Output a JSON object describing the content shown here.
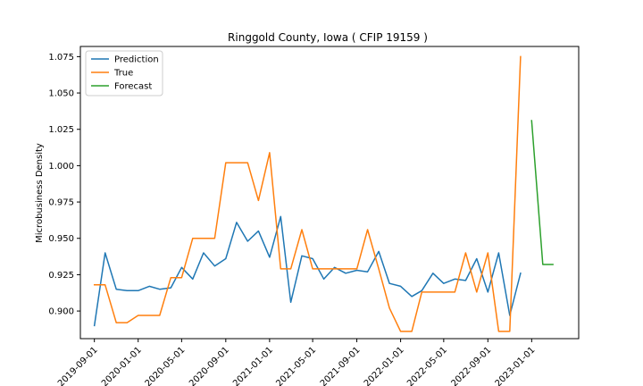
{
  "chart_data": {
    "type": "line",
    "title": "Ringgold County, Iowa ( CFIP 19159 )",
    "xlabel": "",
    "ylabel": "Microbusiness Density",
    "xlim": [
      "2019-07-24",
      "2023-05-12"
    ],
    "ylim": [
      0.881,
      1.082
    ],
    "x_ticks": [
      "2019-09-01",
      "2020-01-01",
      "2020-05-01",
      "2020-09-01",
      "2021-01-01",
      "2021-05-01",
      "2021-09-01",
      "2022-01-01",
      "2022-05-01",
      "2022-09-01",
      "2023-01-01"
    ],
    "y_ticks": [
      0.9,
      0.925,
      0.95,
      0.975,
      1.0,
      1.025,
      1.05,
      1.075
    ],
    "y_tick_labels": [
      "0.900",
      "0.925",
      "0.950",
      "0.975",
      "1.000",
      "1.025",
      "1.050",
      "1.075"
    ],
    "grid": false,
    "legend_position": "top-left",
    "series": [
      {
        "name": "Prediction",
        "color": "#1f77b4",
        "x": [
          "2019-09-01",
          "2019-10-01",
          "2019-11-01",
          "2019-12-01",
          "2020-01-01",
          "2020-02-01",
          "2020-03-01",
          "2020-04-01",
          "2020-05-01",
          "2020-06-01",
          "2020-07-01",
          "2020-08-01",
          "2020-09-01",
          "2020-10-01",
          "2020-11-01",
          "2020-12-01",
          "2021-01-01",
          "2021-02-01",
          "2021-03-01",
          "2021-04-01",
          "2021-05-01",
          "2021-06-01",
          "2021-07-01",
          "2021-08-01",
          "2021-09-01",
          "2021-10-01",
          "2021-11-01",
          "2021-12-01",
          "2022-01-01",
          "2022-02-01",
          "2022-03-01",
          "2022-04-01",
          "2022-05-01",
          "2022-06-01",
          "2022-07-01",
          "2022-08-01",
          "2022-09-01",
          "2022-10-01",
          "2022-11-01",
          "2022-12-01"
        ],
        "values": [
          0.89,
          0.94,
          0.915,
          0.914,
          0.914,
          0.917,
          0.915,
          0.916,
          0.93,
          0.922,
          0.94,
          0.931,
          0.936,
          0.961,
          0.948,
          0.955,
          0.937,
          0.965,
          0.906,
          0.938,
          0.936,
          0.922,
          0.93,
          0.926,
          0.928,
          0.927,
          0.941,
          0.919,
          0.917,
          0.91,
          0.914,
          0.926,
          0.919,
          0.922,
          0.921,
          0.936,
          0.913,
          0.94,
          0.897,
          0.926
        ]
      },
      {
        "name": "True",
        "color": "#ff7f0e",
        "x": [
          "2019-09-01",
          "2019-10-01",
          "2019-11-01",
          "2019-12-01",
          "2020-01-01",
          "2020-02-01",
          "2020-03-01",
          "2020-04-01",
          "2020-05-01",
          "2020-06-01",
          "2020-07-01",
          "2020-08-01",
          "2020-09-01",
          "2020-10-01",
          "2020-11-01",
          "2020-12-01",
          "2021-01-01",
          "2021-02-01",
          "2021-03-01",
          "2021-04-01",
          "2021-05-01",
          "2021-06-01",
          "2021-07-01",
          "2021-08-01",
          "2021-09-01",
          "2021-10-01",
          "2021-11-01",
          "2021-12-01",
          "2022-01-01",
          "2022-02-01",
          "2022-03-01",
          "2022-04-01",
          "2022-05-01",
          "2022-06-01",
          "2022-07-01",
          "2022-08-01",
          "2022-09-01",
          "2022-10-01",
          "2022-11-01",
          "2022-12-01"
        ],
        "values": [
          0.918,
          0.918,
          0.892,
          0.892,
          0.897,
          0.897,
          0.897,
          0.923,
          0.923,
          0.95,
          0.95,
          0.95,
          1.002,
          1.002,
          1.002,
          0.976,
          1.009,
          0.929,
          0.929,
          0.956,
          0.929,
          0.929,
          0.929,
          0.929,
          0.929,
          0.956,
          0.929,
          0.902,
          0.886,
          0.886,
          0.913,
          0.913,
          0.913,
          0.913,
          0.94,
          0.913,
          0.94,
          0.886,
          0.886,
          1.075
        ]
      },
      {
        "name": "Forecast",
        "color": "#2ca02c",
        "x": [
          "2023-01-01",
          "2023-02-01",
          "2023-03-01"
        ],
        "values": [
          1.031,
          0.932,
          0.932
        ]
      }
    ]
  }
}
